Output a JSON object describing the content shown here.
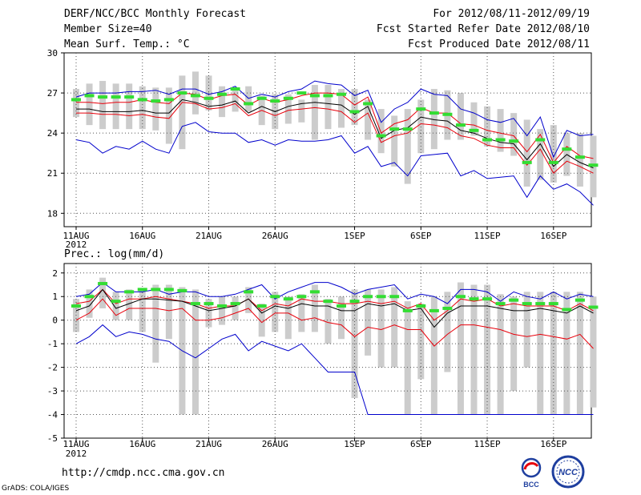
{
  "header": {
    "title": "DERF/NCC/BCC Monthly Forecast",
    "member": "Member Size=40",
    "variable": "Mean Surf. Temp.: °C",
    "period": "For 2012/08/11-2012/09/19",
    "started": "Fcst Started Refer Date 2012/08/10",
    "produced": "Fcst Produced Date 2012/08/11"
  },
  "footer": {
    "url": "http://cmdp.ncc.cma.gov.cn",
    "credit": "GrADS: COLA/IGES",
    "logo_left_text": "BCC",
    "logo_right_text": "NCC"
  },
  "colors": {
    "max_line": "#0000cc",
    "upper_line": "#e8000b",
    "mean_line": "#000000",
    "median_mark": "#33dd33",
    "bar": "#cccccc",
    "grid": "#555555"
  },
  "chart_data": [
    {
      "type": "line",
      "title": "Mean Surf. Temp.: °C",
      "x_tick_labels": [
        "11AUG",
        "16AUG",
        "21AUG",
        "26AUG",
        "1SEP",
        "6SEP",
        "11SEP",
        "16SEP"
      ],
      "x_tick_days": [
        0,
        5,
        10,
        15,
        21,
        26,
        31,
        36
      ],
      "year_label": "2012",
      "ylim": [
        17,
        30
      ],
      "y_ticks": [
        18,
        21,
        24,
        27,
        30
      ],
      "y_tick_labels": [
        "18",
        "21",
        "24",
        "27",
        "30"
      ],
      "bars_low": [
        25.2,
        24.6,
        24.3,
        24.3,
        24.3,
        24.3,
        24.2,
        23.2,
        22.8,
        25.4,
        25.7,
        25.2,
        25.6,
        25.6,
        24.6,
        24.3,
        24.7,
        24.8,
        23.5,
        24.3,
        24.4,
        24.6,
        23.5,
        22.5,
        21.5,
        20.2,
        22.5,
        22.8,
        23.5,
        23.5,
        23.8,
        23.0,
        22.6,
        22.3,
        20.0,
        20.5,
        20.3,
        20.8,
        20.0,
        19.2
      ],
      "bars_high": [
        27.3,
        27.7,
        27.9,
        27.7,
        27.7,
        27.5,
        27.4,
        27.4,
        28.3,
        28.6,
        28.3,
        27.5,
        27.2,
        27.5,
        26.8,
        26.9,
        26.9,
        26.5,
        27.6,
        27.6,
        27.3,
        27.3,
        26.5,
        25.8,
        25.3,
        25.8,
        26.5,
        27.3,
        27.2,
        27.0,
        26.3,
        26.0,
        25.8,
        25.5,
        25.0,
        24.3,
        24.6,
        24.0,
        24.0,
        23.8
      ],
      "series": [
        {
          "name": "max",
          "color": "#0000cc",
          "values": [
            26.7,
            27.0,
            27.0,
            27.0,
            27.1,
            27.1,
            27.2,
            26.9,
            27.3,
            27.3,
            26.9,
            27.1,
            27.5,
            26.6,
            26.9,
            26.7,
            27.1,
            27.3,
            27.9,
            27.7,
            27.6,
            26.8,
            27.2,
            24.8,
            25.8,
            26.3,
            27.3,
            26.9,
            26.8,
            25.8,
            25.5,
            25.0,
            24.8,
            25.1,
            23.8,
            25.2,
            22.2,
            24.2,
            23.8,
            23.9
          ]
        },
        {
          "name": "min",
          "color": "#0000cc",
          "values": [
            23.5,
            23.3,
            22.5,
            23.0,
            22.8,
            23.4,
            22.8,
            22.5,
            24.5,
            24.8,
            24.1,
            24.0,
            24.0,
            23.3,
            23.5,
            23.1,
            23.5,
            23.4,
            23.4,
            23.5,
            23.8,
            22.5,
            23.0,
            21.5,
            21.8,
            20.8,
            22.3,
            22.4,
            22.5,
            20.8,
            21.2,
            20.6,
            20.7,
            20.8,
            19.2,
            20.8,
            19.8,
            20.2,
            19.6,
            18.6
          ]
        },
        {
          "name": "upper",
          "color": "#e8000b",
          "values": [
            26.3,
            26.3,
            26.2,
            26.3,
            26.3,
            26.5,
            26.3,
            26.2,
            27.0,
            26.9,
            26.5,
            26.8,
            26.9,
            26.1,
            26.6,
            26.3,
            26.5,
            26.8,
            27.0,
            27.0,
            26.9,
            26.1,
            26.7,
            24.0,
            24.7,
            25.0,
            25.9,
            25.5,
            25.5,
            24.7,
            24.6,
            24.2,
            24.0,
            23.8,
            22.6,
            23.9,
            21.8,
            23.0,
            22.3,
            22.1
          ]
        },
        {
          "name": "mean",
          "color": "#000000",
          "values": [
            25.8,
            25.8,
            25.6,
            25.6,
            25.6,
            25.7,
            25.5,
            25.5,
            26.5,
            26.3,
            26.0,
            26.1,
            26.4,
            25.5,
            26.0,
            25.6,
            26.0,
            26.2,
            26.3,
            26.2,
            26.1,
            25.4,
            26.0,
            23.6,
            24.2,
            24.4,
            25.2,
            25.0,
            24.9,
            24.2,
            24.0,
            23.6,
            23.3,
            23.2,
            22.0,
            23.2,
            21.5,
            22.4,
            21.8,
            21.4
          ]
        },
        {
          "name": "lower",
          "color": "#e8000b",
          "values": [
            25.5,
            25.5,
            25.4,
            25.4,
            25.3,
            25.4,
            25.2,
            25.1,
            26.3,
            26.2,
            25.8,
            25.9,
            26.2,
            25.3,
            25.7,
            25.3,
            25.7,
            25.8,
            25.9,
            25.8,
            25.6,
            24.8,
            25.5,
            23.3,
            23.8,
            24.0,
            24.7,
            24.6,
            24.4,
            23.8,
            23.6,
            23.1,
            22.9,
            22.9,
            21.6,
            22.8,
            21.0,
            21.9,
            21.5,
            21.0
          ]
        },
        {
          "name": "median",
          "color": "#33dd33",
          "values": [
            26.5,
            26.8,
            26.7,
            26.7,
            26.7,
            26.5,
            26.4,
            26.5,
            27.0,
            26.8,
            26.6,
            26.9,
            27.3,
            26.2,
            26.6,
            26.4,
            26.6,
            27.0,
            26.8,
            26.8,
            26.9,
            25.6,
            26.2,
            23.8,
            24.3,
            24.3,
            25.8,
            25.5,
            25.4,
            24.6,
            24.2,
            23.5,
            23.5,
            23.4,
            21.8,
            23.5,
            21.8,
            22.8,
            22.2,
            21.6
          ]
        }
      ]
    },
    {
      "type": "line",
      "title": "Prec.: log(mm/d)",
      "x_tick_labels": [
        "11AUG",
        "16AUG",
        "21AUG",
        "26AUG",
        "1SEP",
        "6SEP",
        "11SEP",
        "16SEP"
      ],
      "x_tick_days": [
        0,
        5,
        10,
        15,
        21,
        26,
        31,
        36
      ],
      "year_label": "2012",
      "ylim": [
        -5,
        2.4
      ],
      "y_ticks": [
        -5,
        -4,
        -3,
        -2,
        -1,
        0,
        1,
        2
      ],
      "y_tick_labels": [
        "-5",
        "-4",
        "-3",
        "-2",
        "-1",
        "0",
        "1",
        "2"
      ],
      "bars_low": [
        -0.5,
        0.1,
        0.5,
        0.0,
        0.0,
        -0.5,
        -1.8,
        -0.8,
        -4.0,
        -4.0,
        -0.3,
        -0.2,
        0.0,
        0.3,
        -0.7,
        -0.5,
        -0.8,
        -0.5,
        -0.5,
        -1.0,
        -0.8,
        -3.3,
        -1.5,
        -2.0,
        -2.0,
        -4.0,
        -2.5,
        -4.0,
        -2.2,
        -4.0,
        -4.0,
        -4.0,
        -4.0,
        -3.0,
        -2.0,
        -4.0,
        -4.0,
        -4.0,
        -4.0,
        -3.7
      ],
      "bars_high": [
        0.9,
        1.3,
        1.8,
        1.2,
        1.3,
        1.3,
        1.5,
        1.5,
        1.4,
        1.3,
        0.9,
        1.0,
        1.0,
        1.4,
        0.7,
        1.2,
        1.0,
        1.1,
        1.5,
        0.9,
        1.0,
        1.3,
        1.3,
        1.3,
        1.4,
        0.8,
        0.7,
        1.0,
        1.2,
        1.6,
        1.5,
        1.5,
        1.1,
        1.0,
        1.2,
        1.2,
        1.2,
        1.2,
        1.2,
        1.0
      ],
      "series": [
        {
          "name": "max",
          "color": "#0000cc",
          "values": [
            1.0,
            1.1,
            1.6,
            1.2,
            1.2,
            1.2,
            1.3,
            1.1,
            1.2,
            1.2,
            1.0,
            1.0,
            1.1,
            1.3,
            1.5,
            0.9,
            1.2,
            1.4,
            1.6,
            1.6,
            1.4,
            1.1,
            1.3,
            1.4,
            1.5,
            0.9,
            1.1,
            1.0,
            0.7,
            1.3,
            1.3,
            1.2,
            0.8,
            1.2,
            1.0,
            0.9,
            1.2,
            0.9,
            1.1,
            1.0
          ]
        },
        {
          "name": "min",
          "color": "#0000cc",
          "values": [
            -1.0,
            -0.7,
            -0.2,
            -0.7,
            -0.5,
            -0.6,
            -0.8,
            -0.9,
            -1.3,
            -1.6,
            -1.2,
            -0.8,
            -0.6,
            -1.3,
            -0.9,
            -1.1,
            -1.3,
            -1.0,
            -1.6,
            -2.2,
            -2.2,
            -2.2,
            -4.0,
            -4.0,
            -4.0,
            -4.0,
            -4.0,
            -4.0,
            -4.0,
            -4.0,
            -4.0,
            -4.0,
            -4.0,
            -4.0,
            -4.0,
            -4.0,
            -4.0,
            -4.0,
            -4.0,
            -4.0
          ]
        },
        {
          "name": "upper",
          "color": "#e8000b",
          "values": [
            0.7,
            0.8,
            1.3,
            0.7,
            0.9,
            0.9,
            1.0,
            0.9,
            0.8,
            0.7,
            0.5,
            0.6,
            0.6,
            0.9,
            0.4,
            0.7,
            0.6,
            0.9,
            0.8,
            0.8,
            0.7,
            0.7,
            0.8,
            0.7,
            0.8,
            0.5,
            0.7,
            0.0,
            0.4,
            0.9,
            0.8,
            0.9,
            0.6,
            0.7,
            0.6,
            0.6,
            0.6,
            0.4,
            0.7,
            0.4
          ]
        },
        {
          "name": "mean",
          "color": "#000000",
          "values": [
            0.4,
            0.6,
            1.3,
            0.5,
            0.7,
            0.9,
            0.9,
            0.85,
            0.8,
            0.6,
            0.4,
            0.5,
            0.6,
            0.9,
            0.3,
            0.6,
            0.5,
            0.7,
            0.6,
            0.6,
            0.4,
            0.4,
            0.7,
            0.6,
            0.7,
            0.4,
            0.5,
            -0.3,
            0.3,
            0.6,
            0.6,
            0.6,
            0.5,
            0.4,
            0.4,
            0.5,
            0.4,
            0.3,
            0.6,
            0.3
          ]
        },
        {
          "name": "lower",
          "color": "#e8000b",
          "values": [
            0.0,
            0.3,
            0.9,
            0.2,
            0.5,
            0.5,
            0.5,
            0.4,
            0.5,
            0.0,
            0.0,
            0.1,
            0.3,
            0.5,
            -0.1,
            0.3,
            0.3,
            0.0,
            0.1,
            -0.1,
            -0.2,
            -0.7,
            -0.3,
            -0.4,
            -0.2,
            -0.4,
            -0.4,
            -1.1,
            -0.6,
            -0.2,
            -0.2,
            -0.3,
            -0.4,
            -0.6,
            -0.7,
            -0.6,
            -0.7,
            -0.8,
            -0.6,
            -1.2
          ]
        },
        {
          "name": "median",
          "color": "#33dd33",
          "values": [
            0.6,
            1.0,
            1.55,
            0.8,
            1.2,
            1.3,
            1.3,
            1.3,
            1.25,
            0.7,
            0.7,
            0.6,
            0.7,
            1.2,
            0.6,
            1.0,
            0.9,
            1.0,
            1.2,
            0.8,
            0.6,
            0.8,
            1.0,
            1.0,
            1.0,
            0.4,
            0.6,
            0.4,
            0.5,
            1.0,
            0.9,
            0.9,
            0.7,
            0.85,
            0.7,
            0.7,
            0.7,
            0.45,
            0.85,
            0.55
          ]
        }
      ]
    }
  ]
}
